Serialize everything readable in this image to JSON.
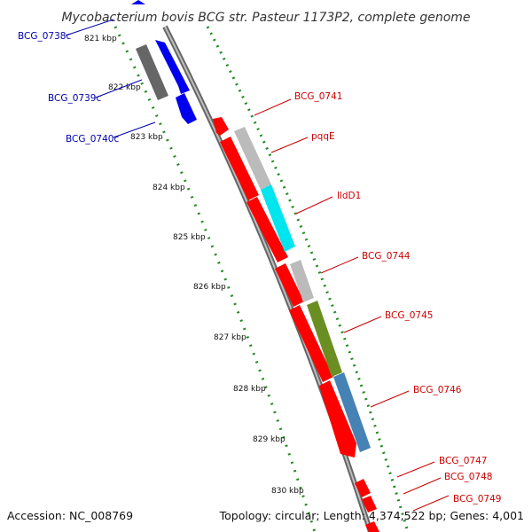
{
  "title": "Mycobacterium bovis BCG str. Pasteur 1173P2, complete genome",
  "footer": {
    "accession": "Accession: NC_008769",
    "summary": "Topology: circular; Length: 4,374,522 bp; Genes: 4,001"
  },
  "scale_labels": [
    "821 kbp",
    "822 kbp",
    "823 kbp",
    "824 kbp",
    "825 kbp",
    "826 kbp",
    "827 kbp",
    "828 kbp",
    "829 kbp",
    "830 kbp"
  ],
  "genes_left": [
    "BCG_0738c",
    "BCG_0739c",
    "BCG_0740c"
  ],
  "genes_right": [
    "BCG_0741",
    "pqqE",
    "lldD1",
    "BCG_0744",
    "BCG_0745",
    "BCG_0746",
    "BCG_0747",
    "BCG_0748",
    "BCG_0749"
  ],
  "colors": {
    "forward_gene": "#ff0000",
    "reverse_gene": "#0000ee",
    "left_label": "#0000aa",
    "right_label": "#cc0000",
    "backbone": "#888888",
    "tick_green": "#228b22",
    "feature_gray": "#bbbbbb",
    "feature_dark_gray": "#666666",
    "feature_cyan": "#00e5ee",
    "feature_olive": "#6b8e23",
    "feature_steelblue": "#4682b4"
  }
}
